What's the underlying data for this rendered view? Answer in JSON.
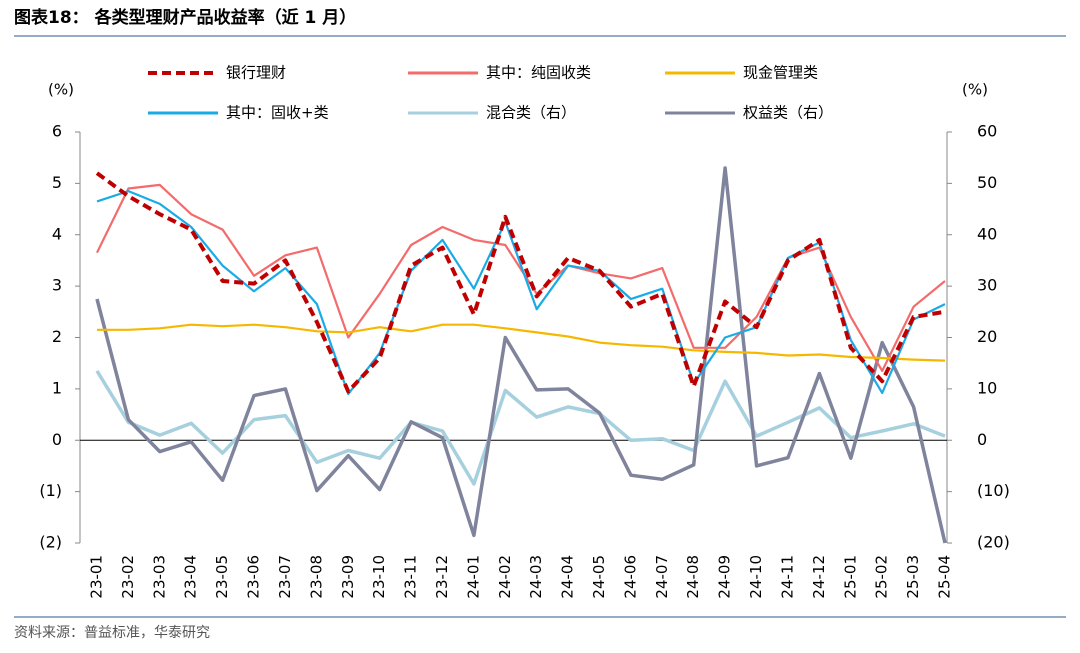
{
  "chart_data": {
    "type": "line",
    "title": "图表18： 各类型理财产品收益率（近 1 月）",
    "source": "资料来源：普益标准，华泰研究",
    "y_label": "(%)",
    "y2_label": "(%)",
    "categories": [
      "23-01",
      "23-02",
      "23-03",
      "23-04",
      "23-05",
      "23-06",
      "23-07",
      "23-08",
      "23-09",
      "23-10",
      "23-11",
      "23-12",
      "24-01",
      "24-02",
      "24-03",
      "24-04",
      "24-05",
      "24-06",
      "24-07",
      "24-08",
      "24-09",
      "24-10",
      "24-11",
      "24-12",
      "25-01",
      "25-02",
      "25-03",
      "25-04"
    ],
    "ylim": [
      -2,
      6
    ],
    "yticks": [
      {
        "value": -2,
        "label": "(2)"
      },
      {
        "value": -1,
        "label": "(1)"
      },
      0,
      1,
      2,
      3,
      4,
      5,
      6
    ],
    "y2lim": [
      -20,
      60
    ],
    "y2ticks": [
      {
        "value": -20,
        "label": "(20)"
      },
      {
        "value": -10,
        "label": "(10)"
      },
      0,
      10,
      20,
      30,
      40,
      50,
      60
    ],
    "series": [
      {
        "name": "银行理财",
        "color": "#c00000",
        "dashed": true,
        "values": [
          5.2,
          4.75,
          4.4,
          4.1,
          3.1,
          3.05,
          3.5,
          2.3,
          0.95,
          1.6,
          3.4,
          3.75,
          2.45,
          4.35,
          2.8,
          3.55,
          3.3,
          2.6,
          2.85,
          1.05,
          2.7,
          2.2,
          3.5,
          3.9,
          1.8,
          1.15,
          2.4,
          2.5
        ]
      },
      {
        "name": "其中：纯固收类",
        "color": "#f36b6b",
        "values": [
          3.65,
          4.9,
          4.97,
          4.4,
          4.1,
          3.2,
          3.6,
          3.75,
          2.0,
          2.85,
          3.8,
          4.15,
          3.9,
          3.8,
          2.85,
          3.4,
          3.25,
          3.15,
          3.35,
          1.8,
          1.8,
          2.4,
          3.55,
          3.75,
          2.4,
          1.35,
          2.6,
          3.1
        ]
      },
      {
        "name": "现金管理类",
        "color": "#f5b800",
        "values": [
          2.15,
          2.15,
          2.18,
          2.25,
          2.22,
          2.25,
          2.2,
          2.12,
          2.1,
          2.2,
          2.12,
          2.25,
          2.25,
          2.18,
          2.1,
          2.02,
          1.9,
          1.85,
          1.82,
          1.75,
          1.72,
          1.7,
          1.65,
          1.67,
          1.62,
          1.6,
          1.57,
          1.55
        ]
      },
      {
        "name": "其中：固收+类",
        "color": "#1aabe6",
        "values": [
          4.65,
          4.85,
          4.6,
          4.15,
          3.4,
          2.9,
          3.35,
          2.65,
          0.9,
          1.7,
          3.3,
          3.9,
          2.95,
          4.25,
          2.55,
          3.4,
          3.3,
          2.75,
          2.95,
          1.1,
          2.0,
          2.2,
          3.55,
          3.85,
          1.95,
          0.92,
          2.35,
          2.65
        ]
      },
      {
        "name": "混合类（右）",
        "color": "#a7d0de",
        "axis": "y2",
        "values": [
          13.5,
          3.5,
          1,
          3.3,
          -2.5,
          4,
          4.8,
          -4.3,
          -2,
          -3.5,
          3.5,
          1.8,
          -8.5,
          9.7,
          4.5,
          6.5,
          5.2,
          0,
          0.3,
          -2,
          11.5,
          0.8,
          3.5,
          6.3,
          0.5,
          1.8,
          3.2,
          0.8
        ]
      },
      {
        "name": "权益类（右）",
        "color": "#7f849c",
        "axis": "y2",
        "values": [
          27.5,
          4,
          -2.2,
          -0.3,
          -7.8,
          8.7,
          10,
          -9.8,
          -3,
          -9.6,
          3.6,
          0.5,
          -18.5,
          20,
          9.8,
          10,
          5.3,
          -6.8,
          -7.6,
          -4.8,
          53,
          -5,
          -3.4,
          13,
          -3.5,
          19,
          6.5,
          -20
        ]
      }
    ]
  }
}
